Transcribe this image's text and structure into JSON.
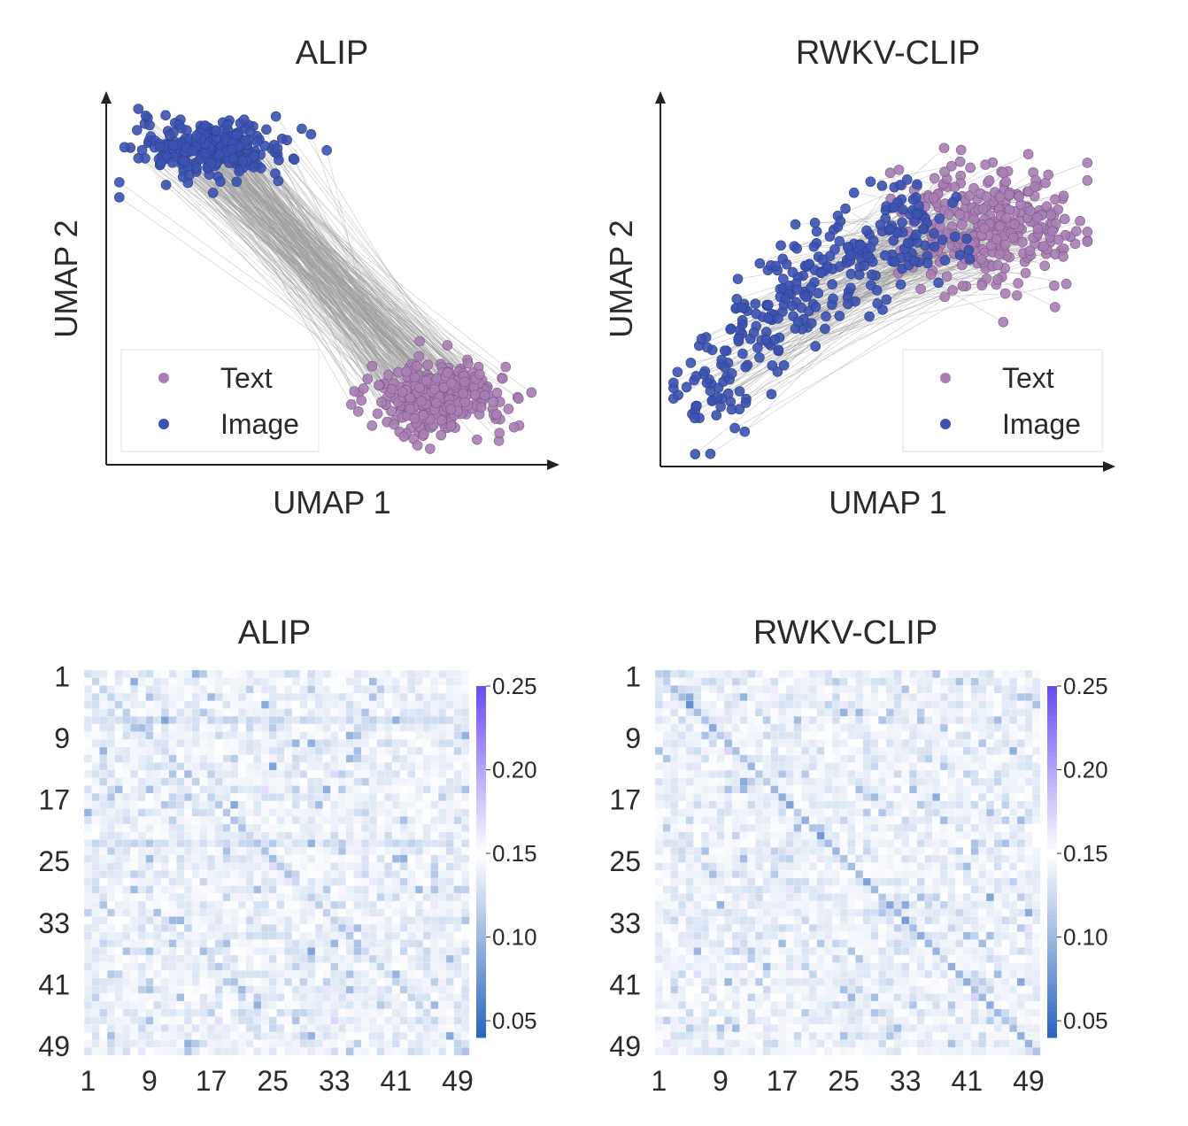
{
  "chart_data": [
    {
      "type": "scatter",
      "title": "ALIP",
      "xlabel": "UMAP 1",
      "ylabel": "UMAP 2",
      "xlim": [
        0,
        10
      ],
      "ylim": [
        0,
        10
      ],
      "legend": "bottom-left",
      "paired_lines": true,
      "series": [
        {
          "name": "Text",
          "color": "#a97db5",
          "cluster_center": [
            7.6,
            1.6
          ],
          "spread": [
            1.5,
            0.9
          ],
          "count": 300
        },
        {
          "name": "Image",
          "color": "#3b52b0",
          "cluster_center": [
            2.3,
            8.7
          ],
          "spread": [
            1.7,
            0.8
          ],
          "count": 300
        }
      ]
    },
    {
      "type": "scatter",
      "title": "RWKV-CLIP",
      "xlabel": "UMAP 1",
      "ylabel": "UMAP 2",
      "xlim": [
        0,
        10
      ],
      "ylim": [
        0,
        10
      ],
      "legend": "bottom-right",
      "paired_lines": true,
      "series": [
        {
          "name": "Text",
          "color": "#a97db5",
          "cluster_center": [
            7.5,
            6.6
          ],
          "spread": [
            1.8,
            1.6
          ],
          "count": 300
        },
        {
          "name": "Image",
          "color": "#3b52b0",
          "cluster_center": [
            3.2,
            3.5
          ],
          "spread": [
            2.6,
            1.8
          ],
          "count": 300
        }
      ]
    },
    {
      "type": "heatmap",
      "title": "ALIP",
      "size": 50,
      "xticks": [
        "1",
        "9",
        "17",
        "25",
        "33",
        "41",
        "49"
      ],
      "yticks": [
        "1",
        "9",
        "17",
        "25",
        "33",
        "41",
        "49"
      ],
      "colorbar_ticks": [
        "0.25",
        "0.20",
        "0.15",
        "0.10",
        "0.05"
      ],
      "vmin": 0.04,
      "vmax": 0.25,
      "colormap": [
        "#2b66bf",
        "#ffffff",
        "#6a4df2"
      ],
      "off_diagonal_mean": 0.14,
      "diagonal_mean": 0.115,
      "highlighted_rows": [
        6,
        22
      ]
    },
    {
      "type": "heatmap",
      "title": "RWKV-CLIP",
      "size": 50,
      "xticks": [
        "1",
        "9",
        "17",
        "25",
        "33",
        "41",
        "49"
      ],
      "yticks": [
        "1",
        "9",
        "17",
        "25",
        "33",
        "41",
        "49"
      ],
      "colorbar_ticks": [
        "0.25",
        "0.20",
        "0.15",
        "0.10",
        "0.05"
      ],
      "vmin": 0.04,
      "vmax": 0.25,
      "colormap": [
        "#2b66bf",
        "#ffffff",
        "#6a4df2"
      ],
      "off_diagonal_mean": 0.14,
      "diagonal_mean": 0.1,
      "highlighted_rows": []
    }
  ]
}
